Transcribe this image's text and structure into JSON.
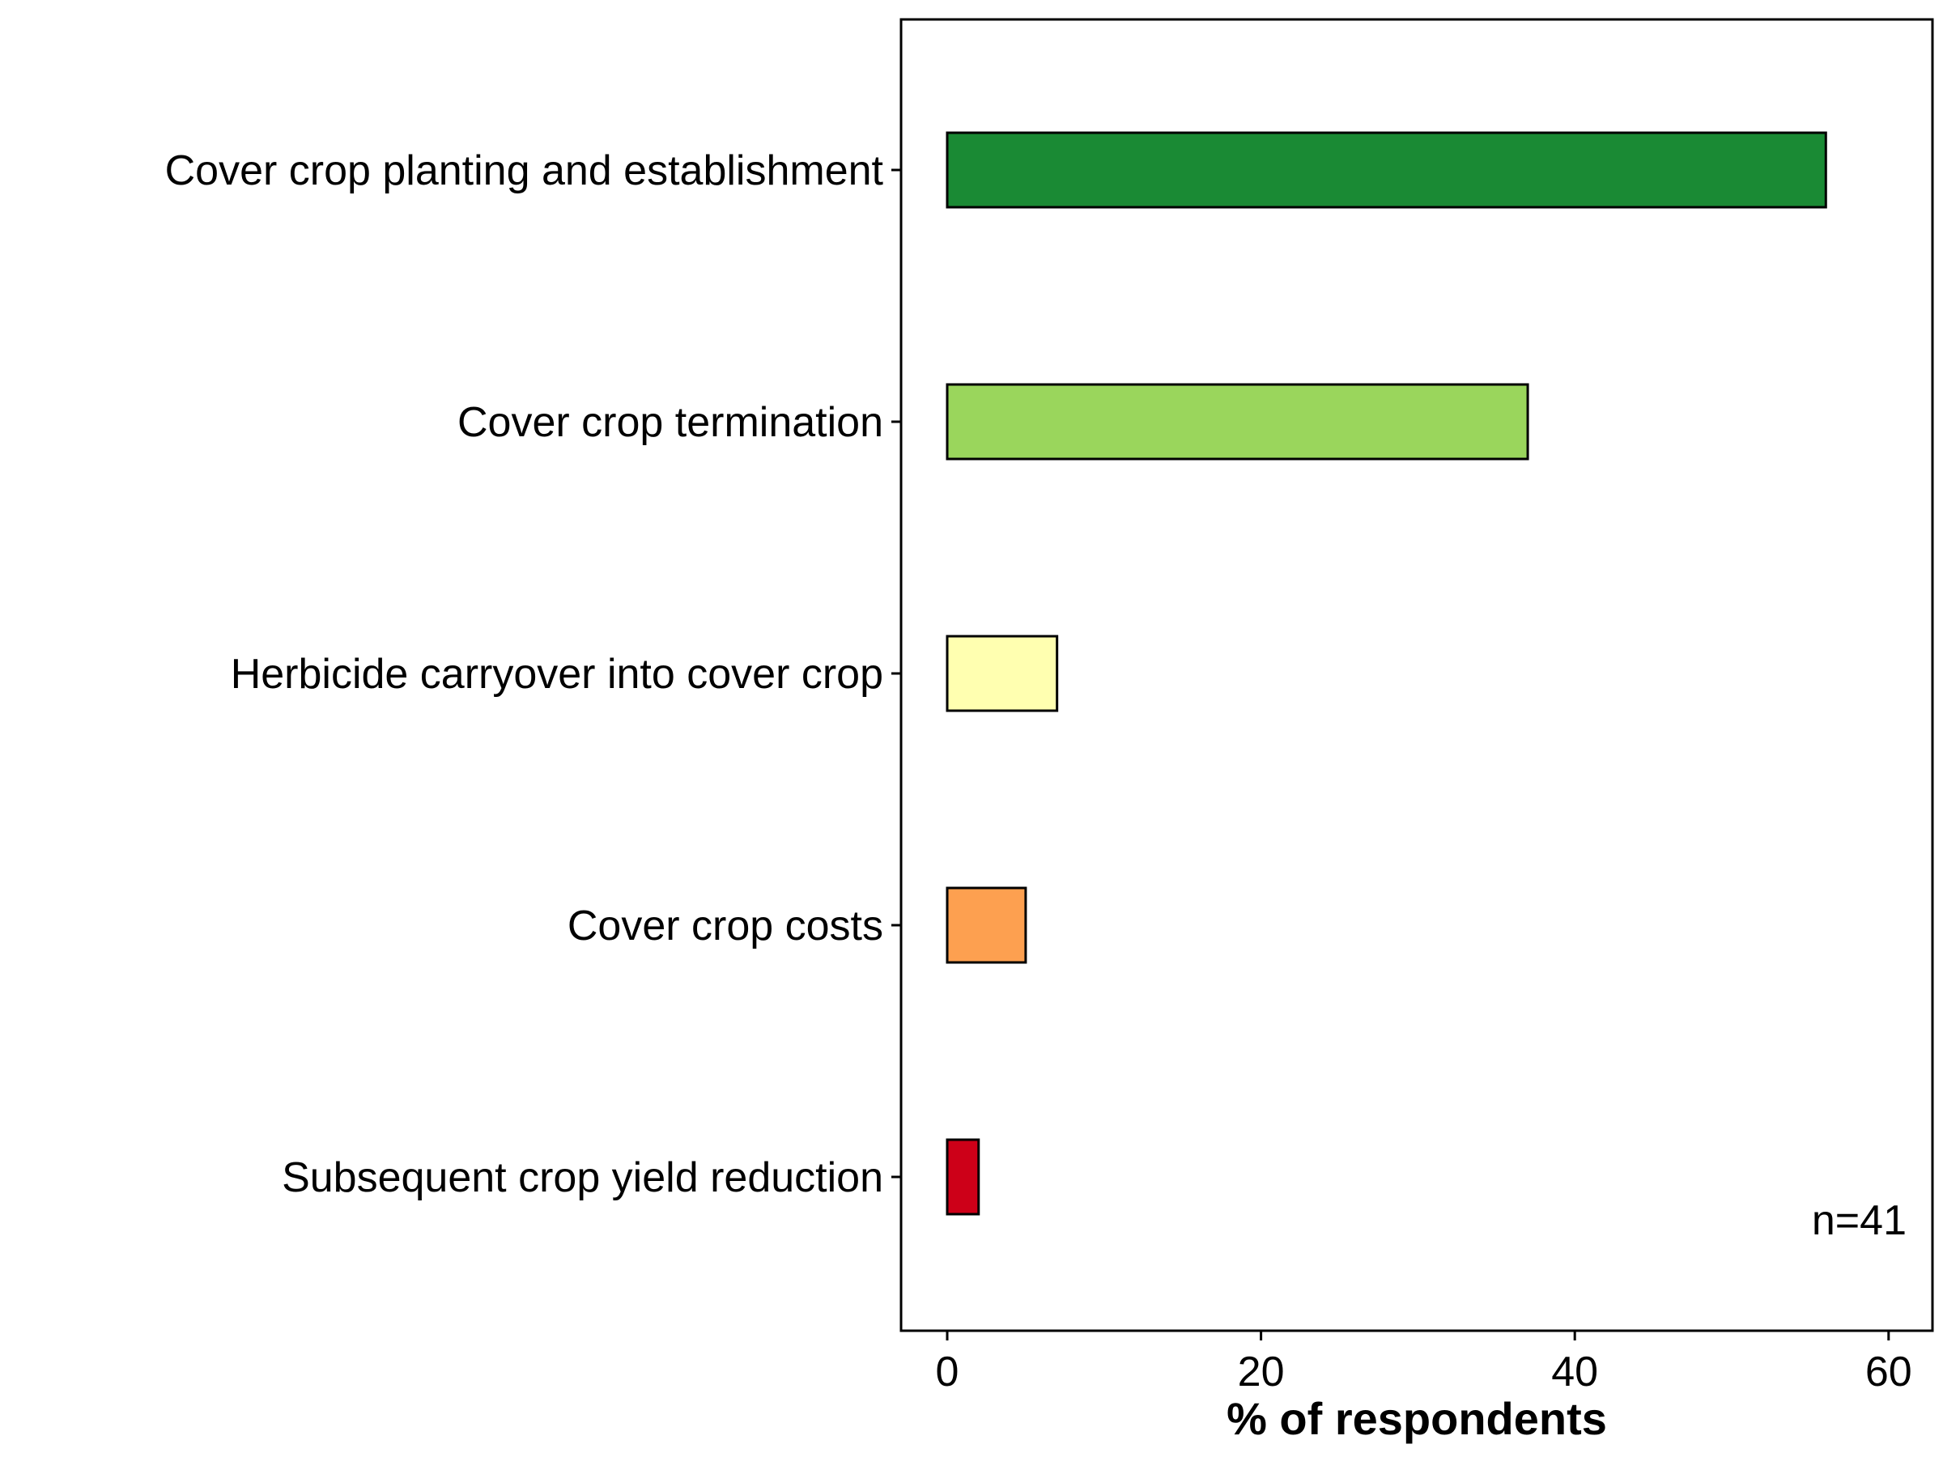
{
  "chart_data": {
    "type": "bar",
    "orientation": "horizontal",
    "title": "",
    "xlabel": "% of respondents",
    "ylabel": "",
    "xlim": [
      0,
      60
    ],
    "x_ticks": [
      0,
      20,
      40,
      60
    ],
    "grid": false,
    "legend": "none",
    "categories": [
      "Cover crop planting and establishment",
      "Cover crop termination",
      "Herbicide carryover into cover crop",
      "Cover crop costs",
      "Subsequent crop yield reduction"
    ],
    "values": [
      56,
      37,
      7,
      5,
      2
    ],
    "colors": [
      "#1a8a34",
      "#9ad65c",
      "#ffffb0",
      "#fda050",
      "#cd0018"
    ],
    "annotation": "n=41"
  }
}
